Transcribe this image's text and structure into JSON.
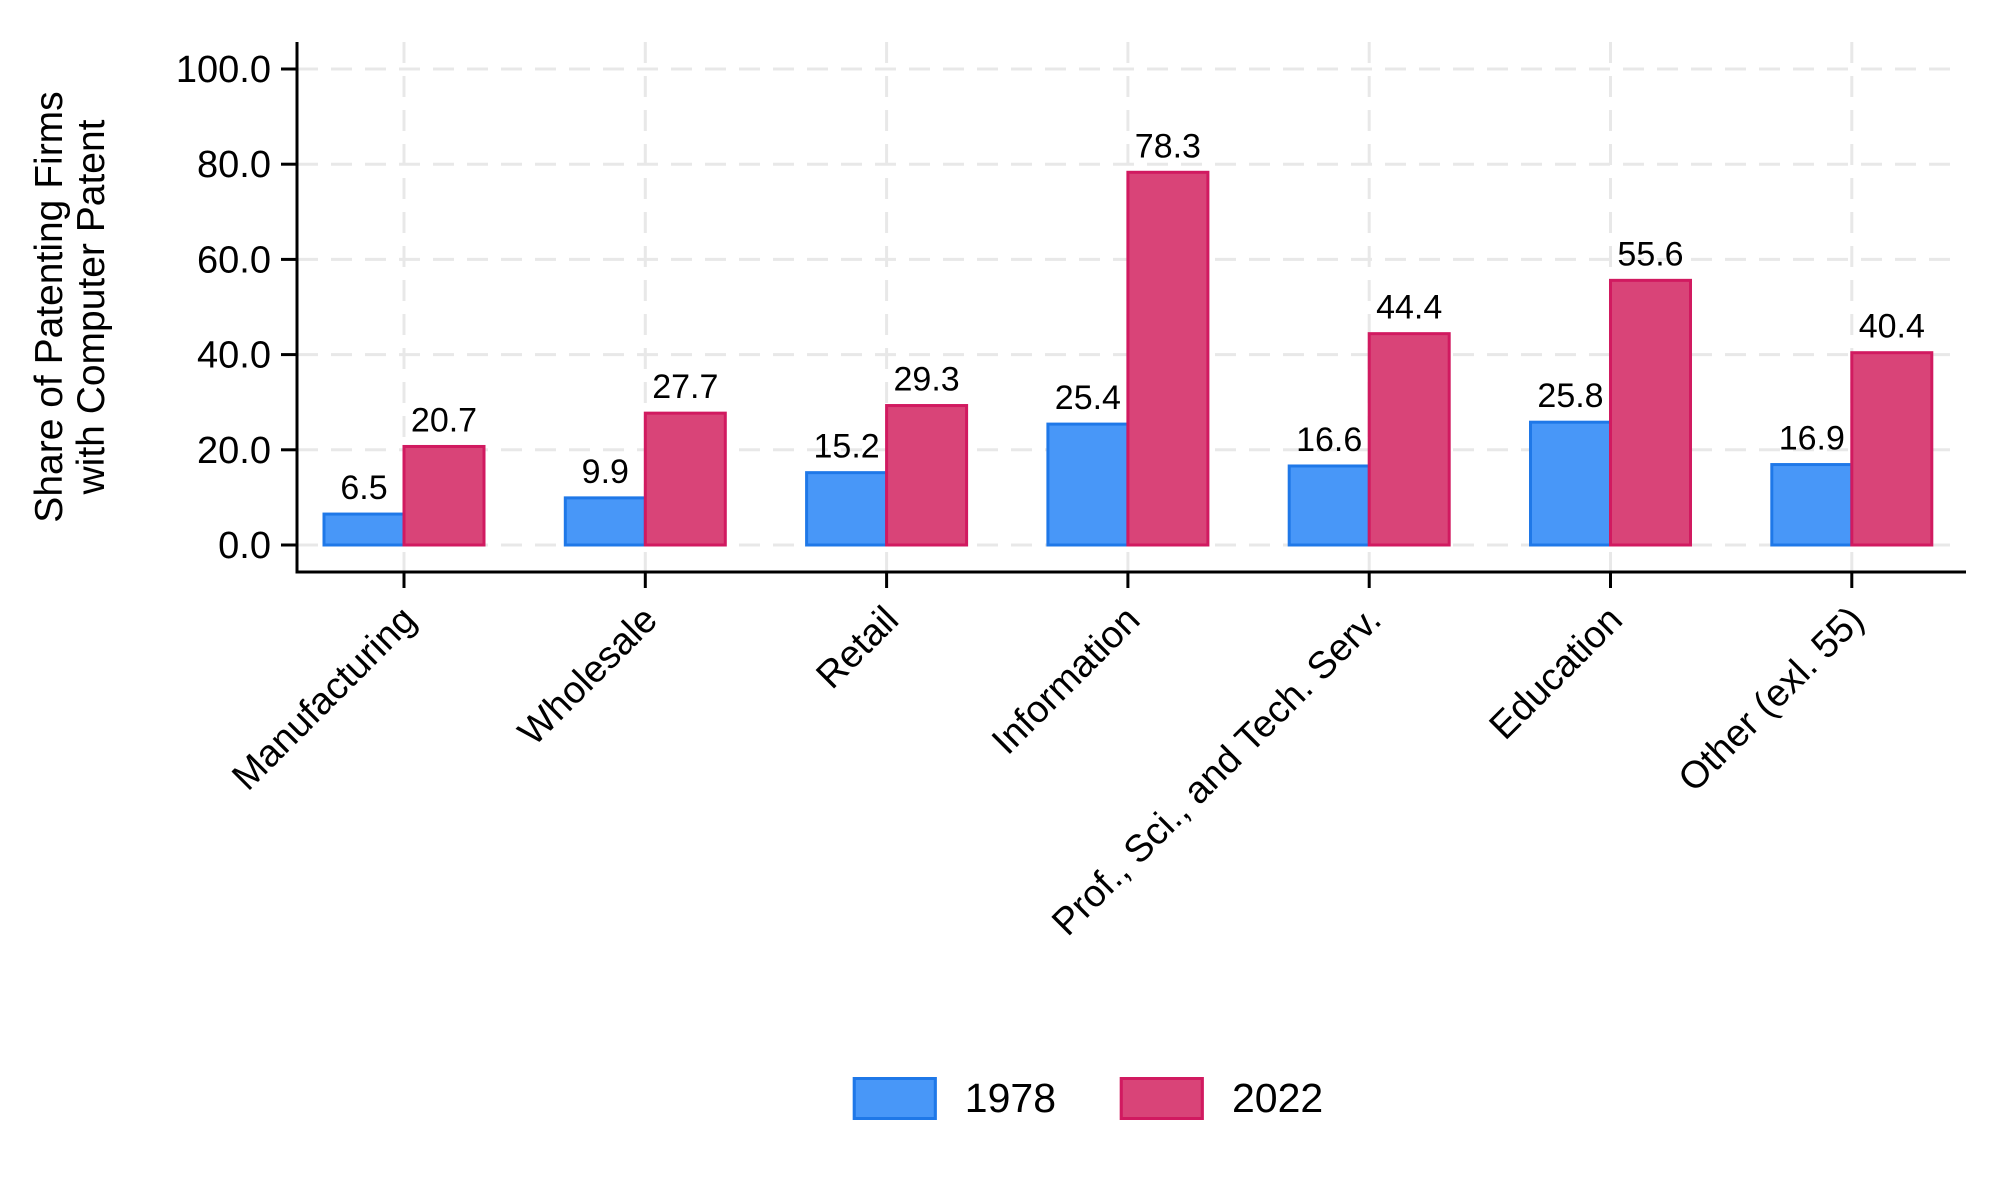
{
  "chart_data": {
    "type": "bar",
    "title": "",
    "ylabel_lines": [
      "Share of Patenting Firms",
      "with Computer Patent"
    ],
    "xlabel": "",
    "categories": [
      "Manufacturing",
      "Wholesale",
      "Retail",
      "Information",
      "Prof., Sci., and Tech. Serv.",
      "Education",
      "Other (exl. 55)"
    ],
    "series": [
      {
        "name": "1978",
        "fill": "#4897F8",
        "stroke": "#1F78E8",
        "values": [
          6.5,
          9.9,
          15.2,
          25.4,
          16.6,
          25.8,
          16.9
        ],
        "labels": [
          "6.5",
          "9.9",
          "15.2",
          "25.4",
          "16.6",
          "25.8",
          "16.9"
        ]
      },
      {
        "name": "2022",
        "fill": "#D94478",
        "stroke": "#D11A60",
        "values": [
          20.7,
          27.7,
          29.3,
          78.3,
          44.4,
          55.6,
          40.4
        ],
        "labels": [
          "20.7",
          "27.7",
          "29.3",
          "78.3",
          "44.4",
          "55.6",
          "40.4"
        ]
      }
    ],
    "ylim": [
      0,
      100
    ],
    "yticks": [
      0,
      20,
      40,
      60,
      80,
      100
    ],
    "ytick_labels": [
      "0.0",
      "20.0",
      "40.0",
      "60.0",
      "80.0",
      "100.0"
    ],
    "grid": true,
    "gridline_style": "dashed",
    "legend_position": "bottom",
    "colors": {
      "grid": "#E8E8E8",
      "axis": "#000000",
      "text": "#000000",
      "background": "#FFFFFF"
    }
  }
}
